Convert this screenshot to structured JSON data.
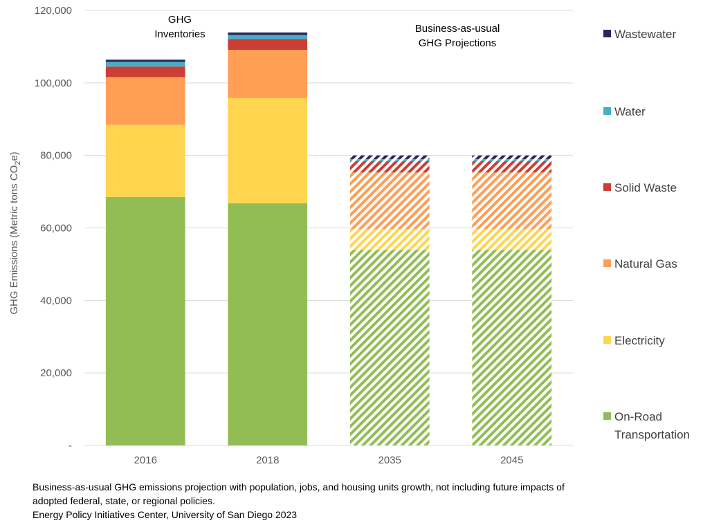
{
  "chart_data": {
    "type": "bar",
    "stacked": true,
    "categories": [
      "2016",
      "2018",
      "2035",
      "2045"
    ],
    "category_styles": [
      "solid",
      "solid",
      "hatched",
      "hatched"
    ],
    "ylabel": "GHG Emissions (Metric tons CO2e)",
    "ylim": [
      0,
      120000
    ],
    "yticks": [
      0,
      20000,
      40000,
      60000,
      80000,
      100000,
      120000
    ],
    "ytick_labels": [
      "-",
      "20,000",
      "40,000",
      "60,000",
      "80,000",
      "100,000",
      "120,000"
    ],
    "grid": true,
    "legend_position": "right",
    "series": [
      {
        "name": "On-Road Transportation",
        "color": "#92BD55",
        "values": [
          68500,
          66800,
          53900,
          53900
        ]
      },
      {
        "name": "Electricity",
        "color": "#FFD54F",
        "values": [
          19900,
          29000,
          5800,
          5800
        ]
      },
      {
        "name": "Natural Gas",
        "color": "#FF9E55",
        "values": [
          13200,
          13300,
          15600,
          15600
        ]
      },
      {
        "name": "Solid Waste",
        "color": "#CC3E33",
        "values": [
          2900,
          3000,
          3100,
          3100
        ]
      },
      {
        "name": "Water",
        "color": "#4BACC6",
        "values": [
          1300,
          1100,
          600,
          600
        ]
      },
      {
        "name": "Wastewater",
        "color": "#26285C",
        "values": [
          600,
          700,
          1000,
          1000
        ]
      }
    ],
    "annotations": [
      {
        "text_lines": [
          "GHG",
          "Inventories"
        ]
      },
      {
        "text_lines": [
          "Business-as-usual",
          "GHG Projections"
        ]
      }
    ]
  },
  "ylabel_parts": {
    "before": "GHG Emissions (Metric tons CO",
    "sub": "2",
    "after": "e)"
  },
  "legend_display": [
    {
      "lines": [
        "Wastewater"
      ]
    },
    {
      "lines": [
        "Water"
      ]
    },
    {
      "lines": [
        "Solid Waste"
      ]
    },
    {
      "lines": [
        "Natural Gas"
      ]
    },
    {
      "lines": [
        "Electricity"
      ]
    },
    {
      "lines": [
        "On-Road",
        "Transportation"
      ]
    }
  ],
  "footnote": {
    "line1": "Business-as-usual GHG emissions projection with population, jobs, and housing units growth, not including future impacts of",
    "line2": "adopted federal, state, or regional policies.",
    "line3": "Energy Policy Initiatives Center, University of San Diego 2023"
  }
}
